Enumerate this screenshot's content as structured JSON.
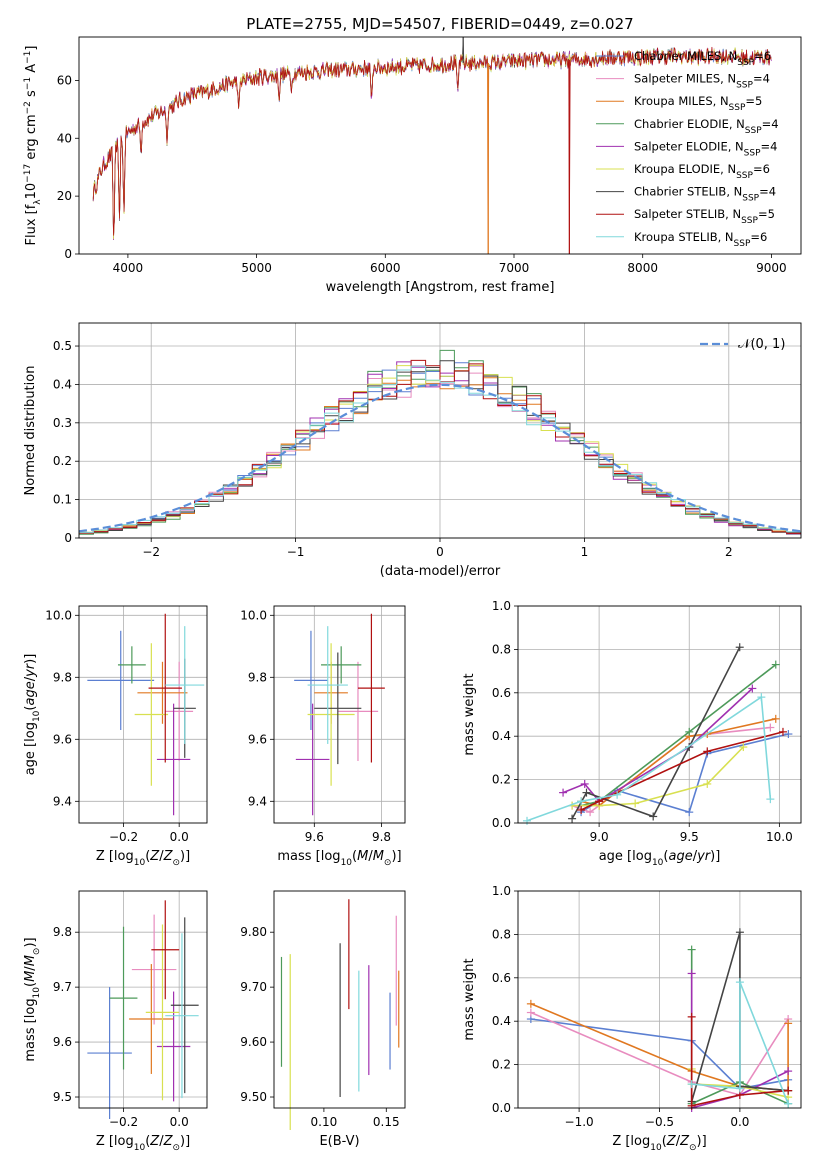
{
  "figure_title": "PLATE=2755, MJD=54507, FIBERID=0449, z=0.027",
  "colors": [
    "#5b7fd1",
    "#e88cbf",
    "#e07820",
    "#4d9a5a",
    "#a030b0",
    "#d8e050",
    "#444444",
    "#b01010",
    "#80d8dc"
  ],
  "chart_data": [
    {
      "id": "spectrum",
      "type": "line",
      "xlabel": "wavelength [Angstrom, rest frame]",
      "ylabel": "Flux [f_λ10^-17 erg cm^-2 s^-1 A^-1]",
      "xlim": [
        3620,
        9230
      ],
      "ylim": [
        0,
        75
      ],
      "xticks": [
        4000,
        5000,
        6000,
        7000,
        8000,
        9000
      ],
      "yticks": [
        0,
        20,
        40,
        60
      ],
      "grid": false,
      "legend_position": "lower-right",
      "legend": [
        "Chabrier MILES, N_SSP=6",
        "Salpeter MILES, N_SSP=4",
        "Kroupa MILES, N_SSP=5",
        "Chabrier ELODIE, N_SSP=4",
        "Salpeter ELODIE, N_SSP=4",
        "Kroupa ELODIE, N_SSP=6",
        "Chabrier STELIB, N_SSP=4",
        "Salpeter STELIB, N_SSP=5",
        "Kroupa STELIB, N_SSP=6"
      ],
      "continuum": {
        "x": [
          3730,
          3800,
          3900,
          4000,
          4100,
          4200,
          4300,
          4400,
          4500,
          4600,
          4800,
          5000,
          5200,
          5400,
          5600,
          5800,
          6000,
          6200,
          6400,
          6600,
          6800,
          7000,
          7200,
          7400,
          7600,
          7800,
          8000,
          8200,
          8400,
          8600,
          8800,
          9000
        ],
        "y": [
          21,
          30,
          36,
          42,
          45,
          48,
          50,
          53,
          55,
          56,
          59,
          61,
          62,
          63,
          63.5,
          64,
          64.5,
          65,
          65.5,
          66,
          66,
          66.5,
          67,
          67,
          67.5,
          68,
          68,
          68.5,
          68,
          68.5,
          68,
          68
        ]
      },
      "absorption_lines": [
        {
          "x": 3890,
          "y": 0
        },
        {
          "x": 3934,
          "y": 10
        },
        {
          "x": 3969,
          "y": 12
        },
        {
          "x": 4102,
          "y": 33
        },
        {
          "x": 4304,
          "y": 38
        },
        {
          "x": 4861,
          "y": 50
        },
        {
          "x": 5175,
          "y": 52
        },
        {
          "x": 5270,
          "y": 56
        },
        {
          "x": 5893,
          "y": 52
        },
        {
          "x": 6563,
          "y": 56
        }
      ],
      "features": [
        {
          "x": 6800,
          "y": 0,
          "series": "Kroupa MILES, N_SSP=5"
        },
        {
          "x": 7430,
          "y": 0,
          "series": "Salpeter STELIB, N_SSP=5"
        },
        {
          "x": 6605,
          "y": 75,
          "series": "Chabrier STELIB, N_SSP=4"
        }
      ]
    },
    {
      "id": "residuals",
      "type": "histogram",
      "xlabel": "(data-model)/error",
      "ylabel": "Normed distribution",
      "xlim": [
        -2.5,
        2.5
      ],
      "ylim": [
        0,
        0.56
      ],
      "xticks": [
        -2,
        -1,
        0,
        1,
        2
      ],
      "yticks": [
        0.0,
        0.1,
        0.2,
        0.3,
        0.4,
        0.5
      ],
      "grid": true,
      "bin_width": 0.1,
      "reference": {
        "name": "𝒩(0, 1)",
        "mean": 0,
        "sigma": 1
      },
      "series_sigma": [
        0.93,
        0.95,
        0.92,
        0.9,
        0.91,
        0.94,
        0.92,
        0.93,
        0.96
      ]
    },
    {
      "id": "z-age",
      "type": "scatter",
      "xlabel": "Z [log10(Z/Z⊙)]",
      "ylabel": "age  [log10(age/yr)]",
      "xlim": [
        -0.36,
        0.1
      ],
      "ylim": [
        9.33,
        10.03
      ],
      "xticks": [
        -0.2,
        0.0
      ],
      "yticks": [
        9.4,
        9.6,
        9.8,
        10.0
      ],
      "grid": true,
      "points": [
        {
          "x": -0.21,
          "y": 9.79,
          "xe": 0.12,
          "ye": 0.16
        },
        {
          "x": 0.0,
          "y": 9.69,
          "xe": 0.05,
          "ye": 0.16
        },
        {
          "x": -0.06,
          "y": 9.75,
          "xe": 0.09,
          "ye": 0.1
        },
        {
          "x": -0.17,
          "y": 9.84,
          "xe": 0.05,
          "ye": 0.06
        },
        {
          "x": -0.02,
          "y": 9.535,
          "xe": 0.06,
          "ye": 0.18
        },
        {
          "x": -0.1,
          "y": 9.68,
          "xe": 0.06,
          "ye": 0.23
        },
        {
          "x": 0.02,
          "y": 9.7,
          "xe": 0.04,
          "ye": 0.16
        },
        {
          "x": -0.05,
          "y": 9.765,
          "xe": 0.06,
          "ye": 0.24
        },
        {
          "x": 0.02,
          "y": 9.775,
          "xe": 0.07,
          "ye": 0.19
        }
      ]
    },
    {
      "id": "mass-age",
      "type": "scatter",
      "xlabel": "mass [log10(M/M⊙)]",
      "ylabel": "",
      "xlim": [
        9.48,
        9.87
      ],
      "ylim": [
        9.33,
        10.03
      ],
      "xticks": [
        9.6,
        9.8
      ],
      "yticks": [
        9.4,
        9.6,
        9.8,
        10.0
      ],
      "grid": true,
      "points": [
        {
          "x": 9.59,
          "y": 9.79,
          "xe": 0.05,
          "ye": 0.16
        },
        {
          "x": 9.73,
          "y": 9.69,
          "xe": 0.06,
          "ye": 0.16
        },
        {
          "x": 9.65,
          "y": 9.75,
          "xe": 0.05,
          "ye": 0.1
        },
        {
          "x": 9.68,
          "y": 9.84,
          "xe": 0.06,
          "ye": 0.06
        },
        {
          "x": 9.595,
          "y": 9.535,
          "xe": 0.05,
          "ye": 0.18
        },
        {
          "x": 9.65,
          "y": 9.68,
          "xe": 0.07,
          "ye": 0.23
        },
        {
          "x": 9.67,
          "y": 9.7,
          "xe": 0.07,
          "ye": 0.18
        },
        {
          "x": 9.77,
          "y": 9.765,
          "xe": 0.04,
          "ye": 0.24
        },
        {
          "x": 9.64,
          "y": 9.775,
          "xe": 0.06,
          "ye": 0.19
        }
      ]
    },
    {
      "id": "age-weight",
      "type": "line",
      "xlabel": "age  [log10(age/yr)]",
      "ylabel": "mass weight",
      "xlim": [
        8.55,
        10.12
      ],
      "ylim": [
        0,
        1
      ],
      "xticks": [
        9.0,
        9.5,
        10.0
      ],
      "yticks": [
        0.0,
        0.2,
        0.4,
        0.6,
        0.8,
        1.0
      ],
      "grid": true,
      "series": [
        {
          "x": [
            8.9,
            9.1,
            9.5,
            9.6,
            10.05
          ],
          "y": [
            0.05,
            0.15,
            0.05,
            0.32,
            0.41
          ]
        },
        {
          "x": [
            8.85,
            8.95,
            9.0,
            9.5,
            9.95
          ],
          "y": [
            0.08,
            0.05,
            0.08,
            0.4,
            0.44
          ]
        },
        {
          "x": [
            8.9,
            9.0,
            9.5,
            9.6,
            9.98
          ],
          "y": [
            0.1,
            0.08,
            0.4,
            0.41,
            0.48
          ]
        },
        {
          "x": [
            8.9,
            9.0,
            9.5,
            9.98
          ],
          "y": [
            0.08,
            0.1,
            0.42,
            0.73
          ]
        },
        {
          "x": [
            8.8,
            8.92,
            9.0,
            9.5,
            9.85
          ],
          "y": [
            0.14,
            0.18,
            0.1,
            0.35,
            0.62
          ]
        },
        {
          "x": [
            8.85,
            9.0,
            9.2,
            9.6,
            9.8
          ],
          "y": [
            0.08,
            0.08,
            0.09,
            0.18,
            0.35
          ]
        },
        {
          "x": [
            8.85,
            8.93,
            9.3,
            9.5,
            9.78
          ],
          "y": [
            0.02,
            0.14,
            0.03,
            0.35,
            0.81
          ]
        },
        {
          "x": [
            8.9,
            9.0,
            9.6,
            10.02
          ],
          "y": [
            0.06,
            0.1,
            0.33,
            0.42
          ]
        },
        {
          "x": [
            8.6,
            8.9,
            9.1,
            9.9,
            9.95
          ],
          "y": [
            0.01,
            0.1,
            0.13,
            0.58,
            0.11
          ]
        }
      ]
    },
    {
      "id": "z-mass",
      "type": "scatter",
      "xlabel": "Z [log10(Z/Z⊙)]",
      "ylabel": "mass [log10(M/M⊙)]",
      "xlim": [
        -0.36,
        0.1
      ],
      "ylim": [
        9.48,
        9.875
      ],
      "xticks": [
        -0.2,
        0.0
      ],
      "yticks": [
        9.5,
        9.6,
        9.7,
        9.8
      ],
      "grid": true,
      "points": [
        {
          "x": -0.25,
          "y": 9.58,
          "xe": 0.08,
          "ye": 0.12
        },
        {
          "x": -0.09,
          "y": 9.732,
          "xe": 0.08,
          "ye": 0.1
        },
        {
          "x": -0.1,
          "y": 9.642,
          "xe": 0.08,
          "ye": 0.1
        },
        {
          "x": -0.2,
          "y": 9.68,
          "xe": 0.05,
          "ye": 0.13
        },
        {
          "x": -0.02,
          "y": 9.592,
          "xe": 0.06,
          "ye": 0.1
        },
        {
          "x": -0.06,
          "y": 9.654,
          "xe": 0.06,
          "ye": 0.16
        },
        {
          "x": 0.02,
          "y": 9.667,
          "xe": 0.05,
          "ye": 0.16
        },
        {
          "x": -0.05,
          "y": 9.768,
          "xe": 0.05,
          "ye": 0.09
        },
        {
          "x": 0.01,
          "y": 9.648,
          "xe": 0.06,
          "ye": 0.15
        }
      ]
    },
    {
      "id": "ebv-mass",
      "type": "scatter",
      "xlabel": "E(B-V)",
      "ylabel": "",
      "xlim": [
        0.06,
        0.165
      ],
      "ylim": [
        9.48,
        9.875
      ],
      "xticks": [
        0.1,
        0.15
      ],
      "yticks": [
        9.5,
        9.6,
        9.7,
        9.8
      ],
      "grid": false,
      "points": [
        {
          "x": 0.153,
          "y": 9.62,
          "ye": 0.07
        },
        {
          "x": 0.158,
          "y": 9.73,
          "ye": 0.1
        },
        {
          "x": 0.16,
          "y": 9.66,
          "ye": 0.07
        },
        {
          "x": 0.066,
          "y": 9.655,
          "ye": 0.1
        },
        {
          "x": 0.136,
          "y": 9.64,
          "ye": 0.1
        },
        {
          "x": 0.073,
          "y": 9.6,
          "ye": 0.16
        },
        {
          "x": 0.113,
          "y": 9.64,
          "ye": 0.14
        },
        {
          "x": 0.12,
          "y": 9.76,
          "ye": 0.1
        },
        {
          "x": 0.128,
          "y": 9.62,
          "ye": 0.11
        }
      ]
    },
    {
      "id": "z-weight",
      "type": "line",
      "xlabel": "Z [log10(Z/Z⊙)]",
      "ylabel": "mass weight",
      "xlim": [
        -1.38,
        0.38
      ],
      "ylim": [
        0,
        1
      ],
      "xticks": [
        -1.0,
        -0.5,
        0.0
      ],
      "yticks": [
        0.0,
        0.2,
        0.4,
        0.6,
        0.8,
        1.0
      ],
      "grid": true,
      "series": [
        {
          "x": [
            -1.3,
            -0.3,
            0.0,
            0.3
          ],
          "y": [
            0.41,
            0.31,
            0.09,
            0.13
          ]
        },
        {
          "x": [
            -1.3,
            -0.3,
            0.0,
            0.3
          ],
          "y": [
            0.44,
            0.12,
            0.06,
            0.41
          ]
        },
        {
          "x": [
            -1.3,
            -0.3,
            0.0,
            0.3,
            0.3
          ],
          "y": [
            0.48,
            0.17,
            0.1,
            0.08,
            0.39
          ]
        },
        {
          "x": [
            -0.3,
            -0.3,
            0.0,
            0.3
          ],
          "y": [
            0.73,
            0.02,
            0.12,
            0.02
          ]
        },
        {
          "x": [
            -0.3,
            -0.3,
            0.0,
            0.3
          ],
          "y": [
            0.62,
            0.0,
            0.06,
            0.17
          ]
        },
        {
          "x": [
            -0.3,
            -0.3,
            0.0,
            0.3
          ],
          "y": [
            0.18,
            0.11,
            0.1,
            0.05
          ]
        },
        {
          "x": [
            -0.3,
            0.0,
            0.0,
            0.3
          ],
          "y": [
            0.03,
            0.81,
            0.1,
            0.08
          ]
        },
        {
          "x": [
            -0.3,
            -0.3,
            0.0,
            0.3
          ],
          "y": [
            0.42,
            0.01,
            0.06,
            0.08
          ]
        },
        {
          "x": [
            -0.3,
            0.0,
            0.0,
            0.3
          ],
          "y": [
            0.11,
            0.09,
            0.58,
            0.02
          ]
        }
      ]
    }
  ]
}
